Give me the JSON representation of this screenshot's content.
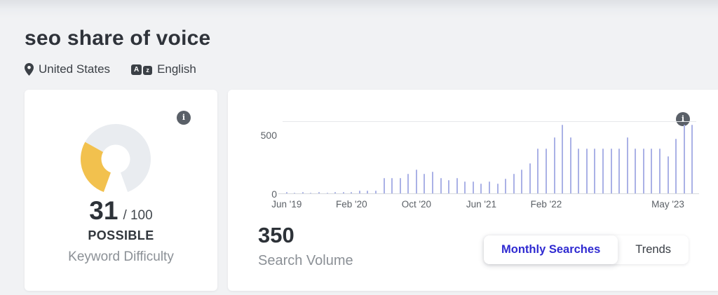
{
  "header": {
    "title": "seo share of voice",
    "location": "United States",
    "language": "English"
  },
  "icons": {
    "info_glyph": "i",
    "translate_a": "A",
    "translate_z": "z"
  },
  "difficulty": {
    "score": "31",
    "max": 100,
    "denominator": "/ 100",
    "level": "POSSIBLE",
    "label": "Keyword Difficulty",
    "gauge": {
      "start_angle": 200,
      "total_angle": 320,
      "fill_color": "#f2c14e",
      "track_color": "#e9ecf0"
    }
  },
  "volume": {
    "value": "350",
    "label": "Search Volume"
  },
  "tabs": {
    "monthly": "Monthly Searches",
    "trends": "Trends",
    "active": "Monthly Searches",
    "active_color": "#2f2ad1"
  },
  "chart_data": {
    "type": "bar",
    "title": "Monthly Searches",
    "xlabel": "",
    "ylabel": "",
    "ylim": [
      0,
      620
    ],
    "grid": false,
    "bar_color": "#aab1e6",
    "y_ticks": [
      {
        "label": "500",
        "value": 500
      },
      {
        "label": "0",
        "value": 0
      }
    ],
    "x_ticks": [
      {
        "label": "Jun '19",
        "index": 0
      },
      {
        "label": "Feb '20",
        "index": 8
      },
      {
        "label": "Oct '20",
        "index": 16
      },
      {
        "label": "Jun '21",
        "index": 24
      },
      {
        "label": "Feb '22",
        "index": 32
      },
      {
        "label": "May '23",
        "index": 47
      }
    ],
    "x": [
      "2019-06",
      "2019-07",
      "2019-08",
      "2019-09",
      "2019-10",
      "2019-11",
      "2019-12",
      "2020-01",
      "2020-02",
      "2020-03",
      "2020-04",
      "2020-05",
      "2020-06",
      "2020-07",
      "2020-08",
      "2020-09",
      "2020-10",
      "2020-11",
      "2020-12",
      "2021-01",
      "2021-02",
      "2021-03",
      "2021-04",
      "2021-05",
      "2021-06",
      "2021-07",
      "2021-08",
      "2021-09",
      "2021-10",
      "2021-11",
      "2021-12",
      "2022-01",
      "2022-02",
      "2022-03",
      "2022-04",
      "2022-05",
      "2022-06",
      "2022-07",
      "2022-08",
      "2022-09",
      "2022-10",
      "2022-11",
      "2022-12",
      "2023-01",
      "2023-02",
      "2023-03",
      "2023-04",
      "2023-05",
      "2023-06",
      "2023-07",
      "2023-08"
    ],
    "values": [
      20,
      10,
      20,
      10,
      20,
      10,
      20,
      20,
      20,
      30,
      30,
      30,
      140,
      140,
      140,
      170,
      210,
      170,
      190,
      140,
      120,
      140,
      110,
      110,
      90,
      110,
      90,
      130,
      170,
      210,
      260,
      390,
      390,
      480,
      590,
      480,
      390,
      390,
      390,
      390,
      390,
      390,
      480,
      390,
      390,
      390,
      390,
      320,
      470,
      590,
      590
    ]
  }
}
